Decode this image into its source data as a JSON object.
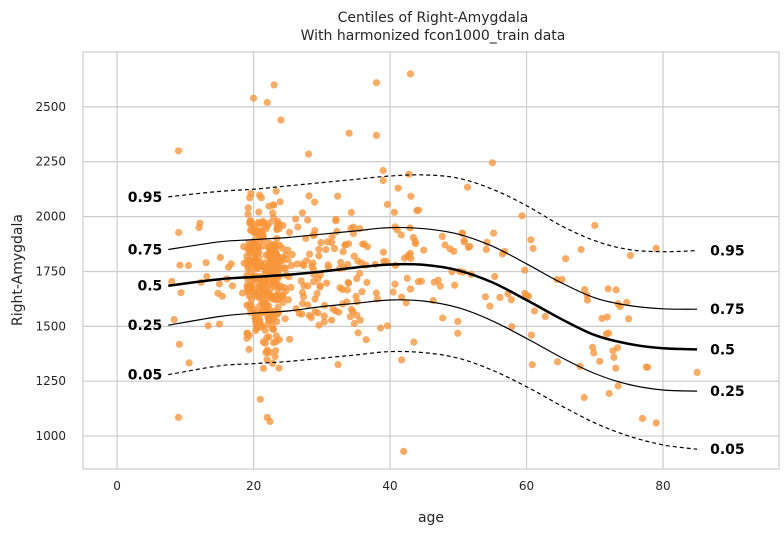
{
  "chart_data": {
    "type": "scatter",
    "title": "Centiles of Right-Amygdala",
    "subtitle": "With harmonized fcon1000_train data",
    "xlabel": "age",
    "ylabel": "Right-Amygdala",
    "xlim": [
      -5,
      97
    ],
    "ylim": [
      850,
      2750
    ],
    "xticks": [
      0,
      20,
      40,
      60,
      80
    ],
    "yticks": [
      1000,
      1250,
      1500,
      1750,
      2000,
      2250,
      2500
    ],
    "grid": true,
    "colors": {
      "points": "#f7953a",
      "lines": "#000000",
      "grid": "#cccccc"
    },
    "centiles": [
      {
        "label": "0.05",
        "style": "dashed",
        "x": [
          7.5,
          15,
          20,
          25,
          30,
          35,
          40,
          45,
          50,
          55,
          60,
          65,
          70,
          75,
          80,
          85
        ],
        "y": [
          1280,
          1320,
          1330,
          1340,
          1355,
          1370,
          1385,
          1380,
          1355,
          1300,
          1225,
          1140,
          1060,
          1000,
          960,
          940
        ]
      },
      {
        "label": "0.25",
        "style": "solid",
        "x": [
          7.5,
          15,
          20,
          25,
          30,
          35,
          40,
          45,
          50,
          55,
          60,
          65,
          70,
          75,
          80,
          85
        ],
        "y": [
          1505,
          1545,
          1560,
          1570,
          1590,
          1605,
          1620,
          1615,
          1585,
          1525,
          1445,
          1360,
          1285,
          1235,
          1210,
          1205
        ]
      },
      {
        "label": "0.5",
        "style": "bold",
        "x": [
          7.5,
          15,
          20,
          25,
          30,
          35,
          40,
          45,
          50,
          55,
          60,
          65,
          70,
          75,
          80,
          85
        ],
        "y": [
          1685,
          1715,
          1725,
          1735,
          1750,
          1768,
          1782,
          1780,
          1755,
          1700,
          1620,
          1535,
          1460,
          1420,
          1400,
          1395
        ]
      },
      {
        "label": "0.75",
        "style": "solid",
        "x": [
          7.5,
          15,
          20,
          25,
          30,
          35,
          40,
          45,
          50,
          55,
          60,
          65,
          70,
          75,
          80,
          85
        ],
        "y": [
          1850,
          1885,
          1895,
          1905,
          1920,
          1935,
          1950,
          1945,
          1920,
          1865,
          1785,
          1700,
          1630,
          1595,
          1580,
          1578
        ]
      },
      {
        "label": "0.95",
        "style": "dashed",
        "x": [
          7.5,
          15,
          20,
          25,
          30,
          35,
          40,
          45,
          50,
          55,
          60,
          65,
          70,
          75,
          80,
          85
        ],
        "y": [
          2090,
          2115,
          2125,
          2140,
          2155,
          2170,
          2185,
          2190,
          2175,
          2125,
          2050,
          1960,
          1890,
          1850,
          1840,
          1845
        ]
      }
    ],
    "scatter_summary": {
      "n_approx": 580,
      "outliers": [
        {
          "x": 9,
          "y": 2300
        },
        {
          "x": 9,
          "y": 1085
        },
        {
          "x": 23,
          "y": 2600
        },
        {
          "x": 20,
          "y": 2540
        },
        {
          "x": 22,
          "y": 2520
        },
        {
          "x": 24,
          "y": 2440
        },
        {
          "x": 38,
          "y": 2610
        },
        {
          "x": 43,
          "y": 2650
        },
        {
          "x": 22,
          "y": 1085
        },
        {
          "x": 42,
          "y": 930
        },
        {
          "x": 55,
          "y": 2245
        },
        {
          "x": 38,
          "y": 2370
        },
        {
          "x": 34,
          "y": 2380
        },
        {
          "x": 39,
          "y": 2210
        },
        {
          "x": 79,
          "y": 1060
        },
        {
          "x": 77,
          "y": 1080
        },
        {
          "x": 85,
          "y": 1290
        },
        {
          "x": 79,
          "y": 1855
        },
        {
          "x": 68,
          "y": 1850
        },
        {
          "x": 70,
          "y": 1960
        },
        {
          "x": 12,
          "y": 1950
        },
        {
          "x": 8,
          "y": 1705
        }
      ]
    }
  }
}
